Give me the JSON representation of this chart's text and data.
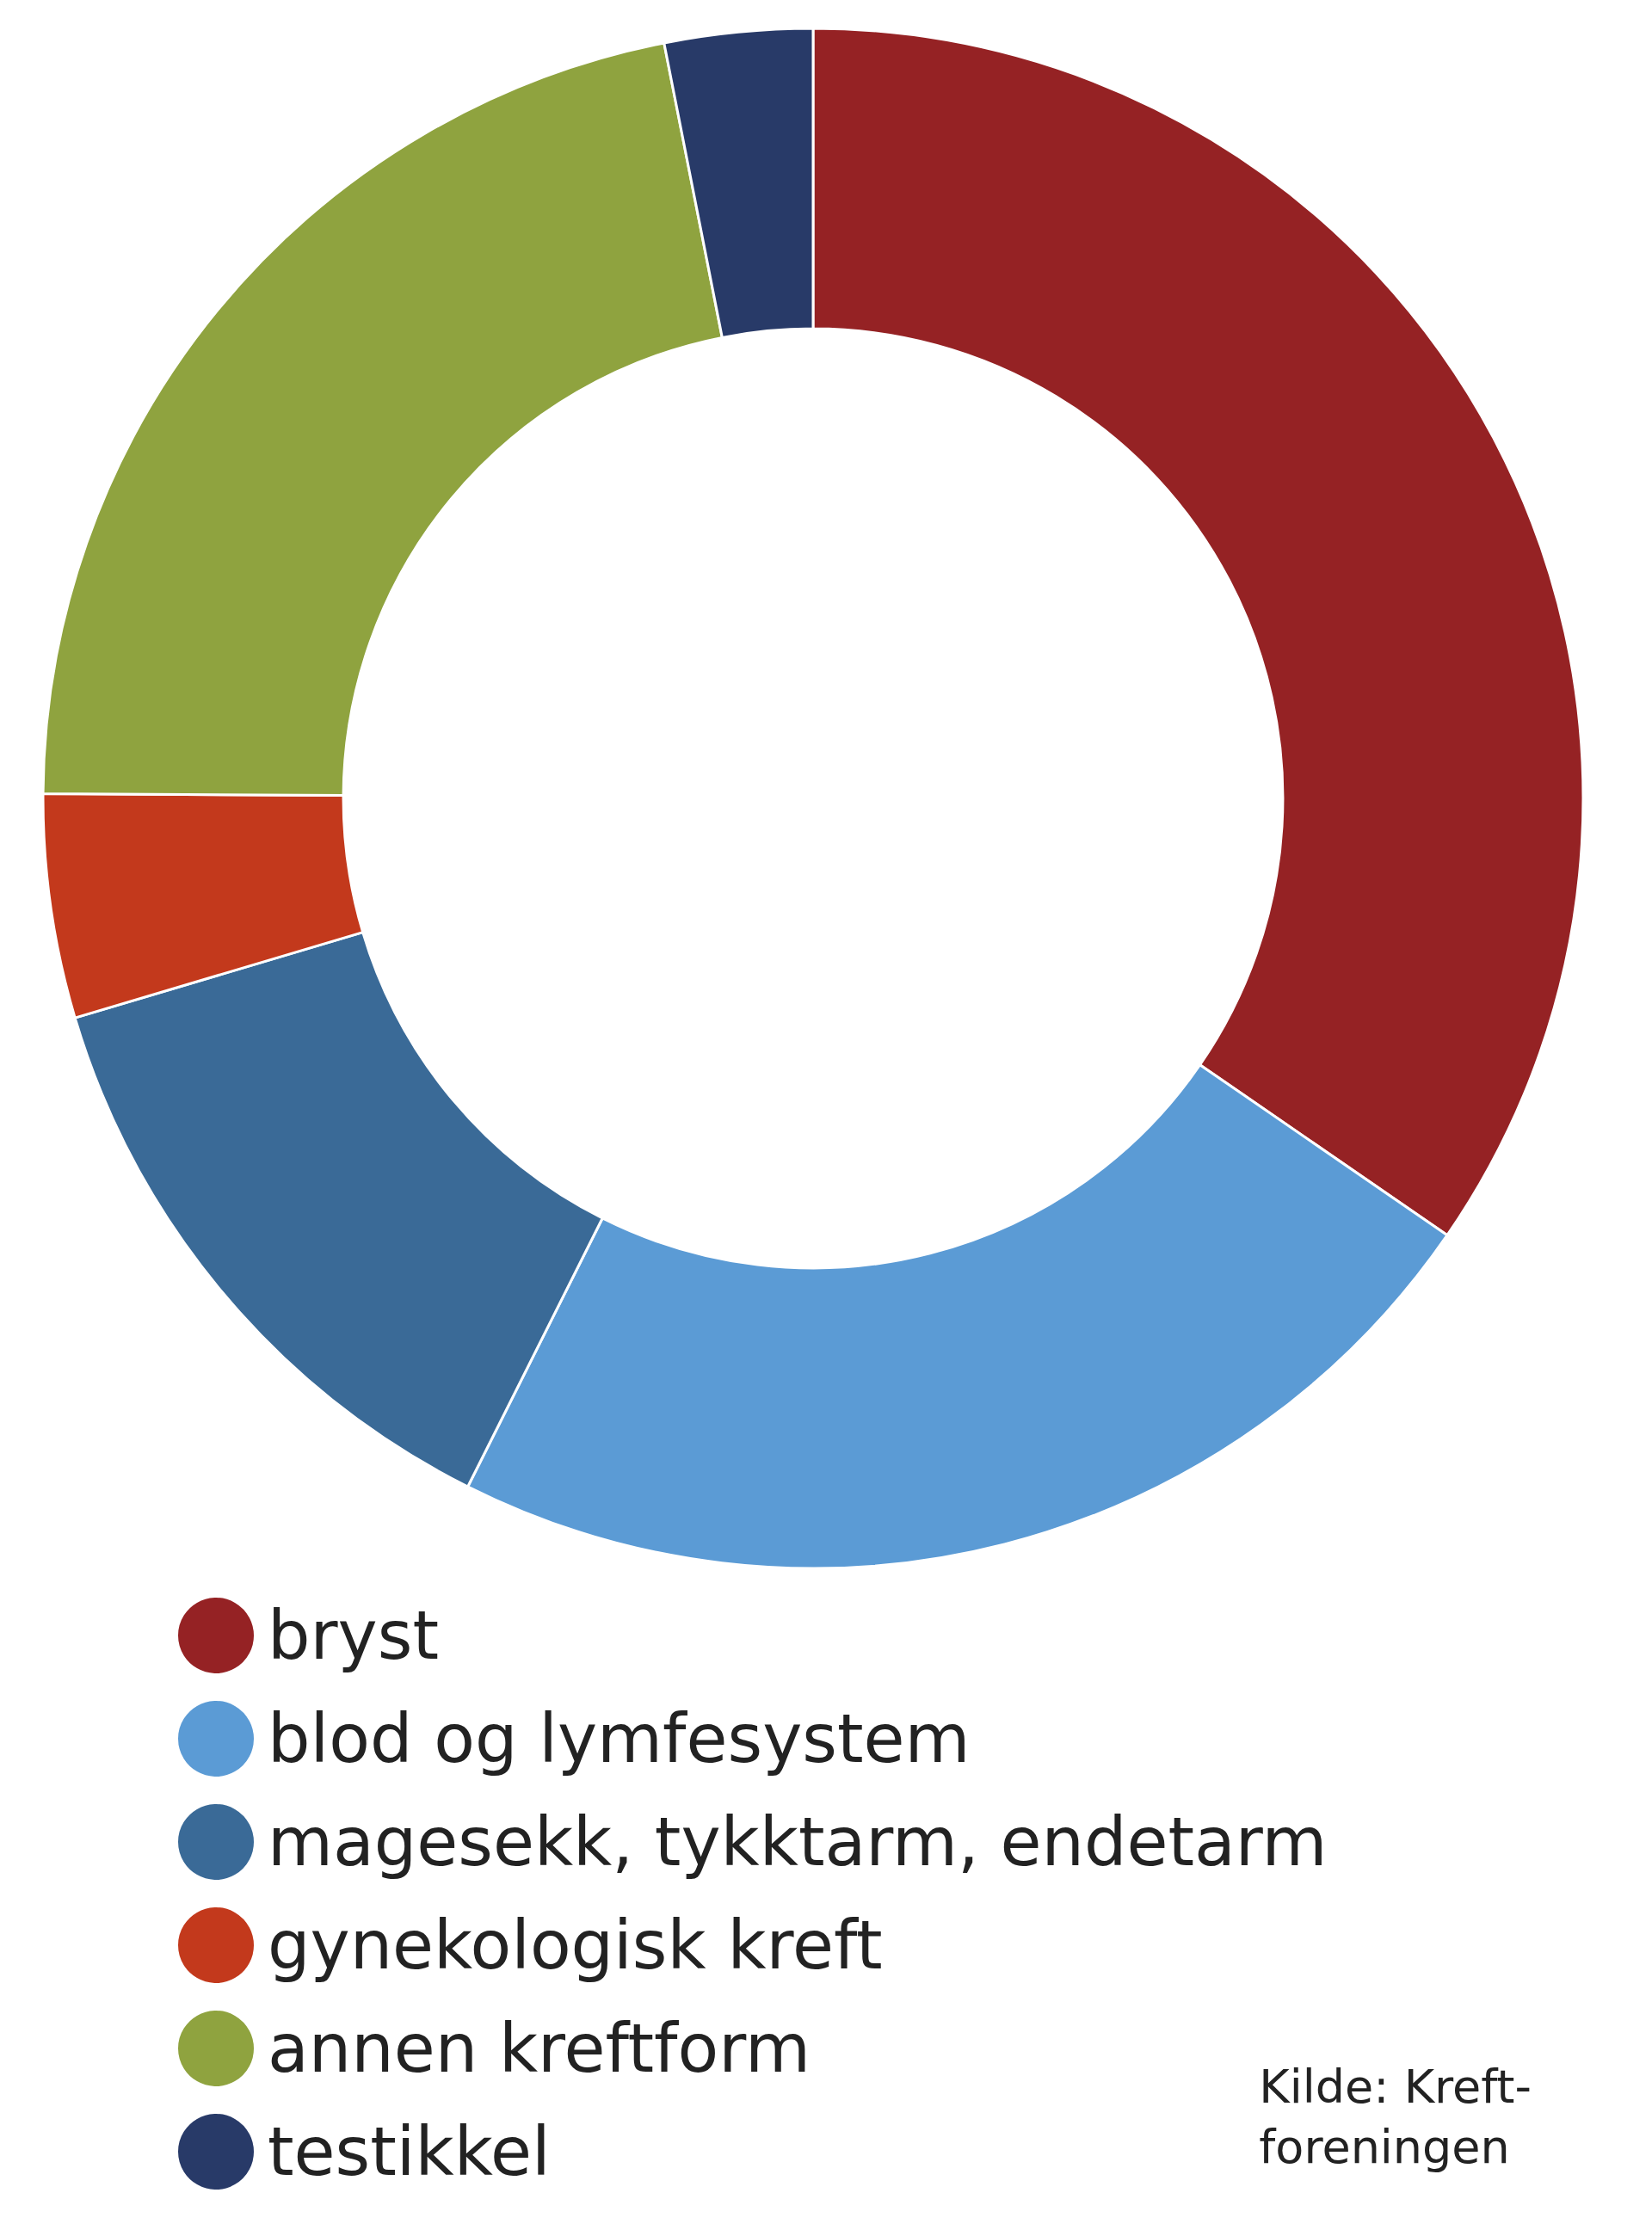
{
  "chart_data": {
    "type": "donut",
    "categories": [
      "bryst",
      "blod og lymfesystem",
      "magesekk, tykktarm, endetarm",
      "gynekologisk kreft",
      "annen kreftform",
      "testikkel"
    ],
    "values": [
      34.6,
      22.8,
      13.0,
      4.7,
      21.8,
      3.1
    ],
    "colors": [
      "#952224",
      "#5b9bd5",
      "#3a6a97",
      "#c3391c",
      "#8fa33f",
      "#283a68"
    ],
    "legend": "bottom left",
    "annotations": [
      "Kilde: Kreft-\nforeningen"
    ]
  }
}
